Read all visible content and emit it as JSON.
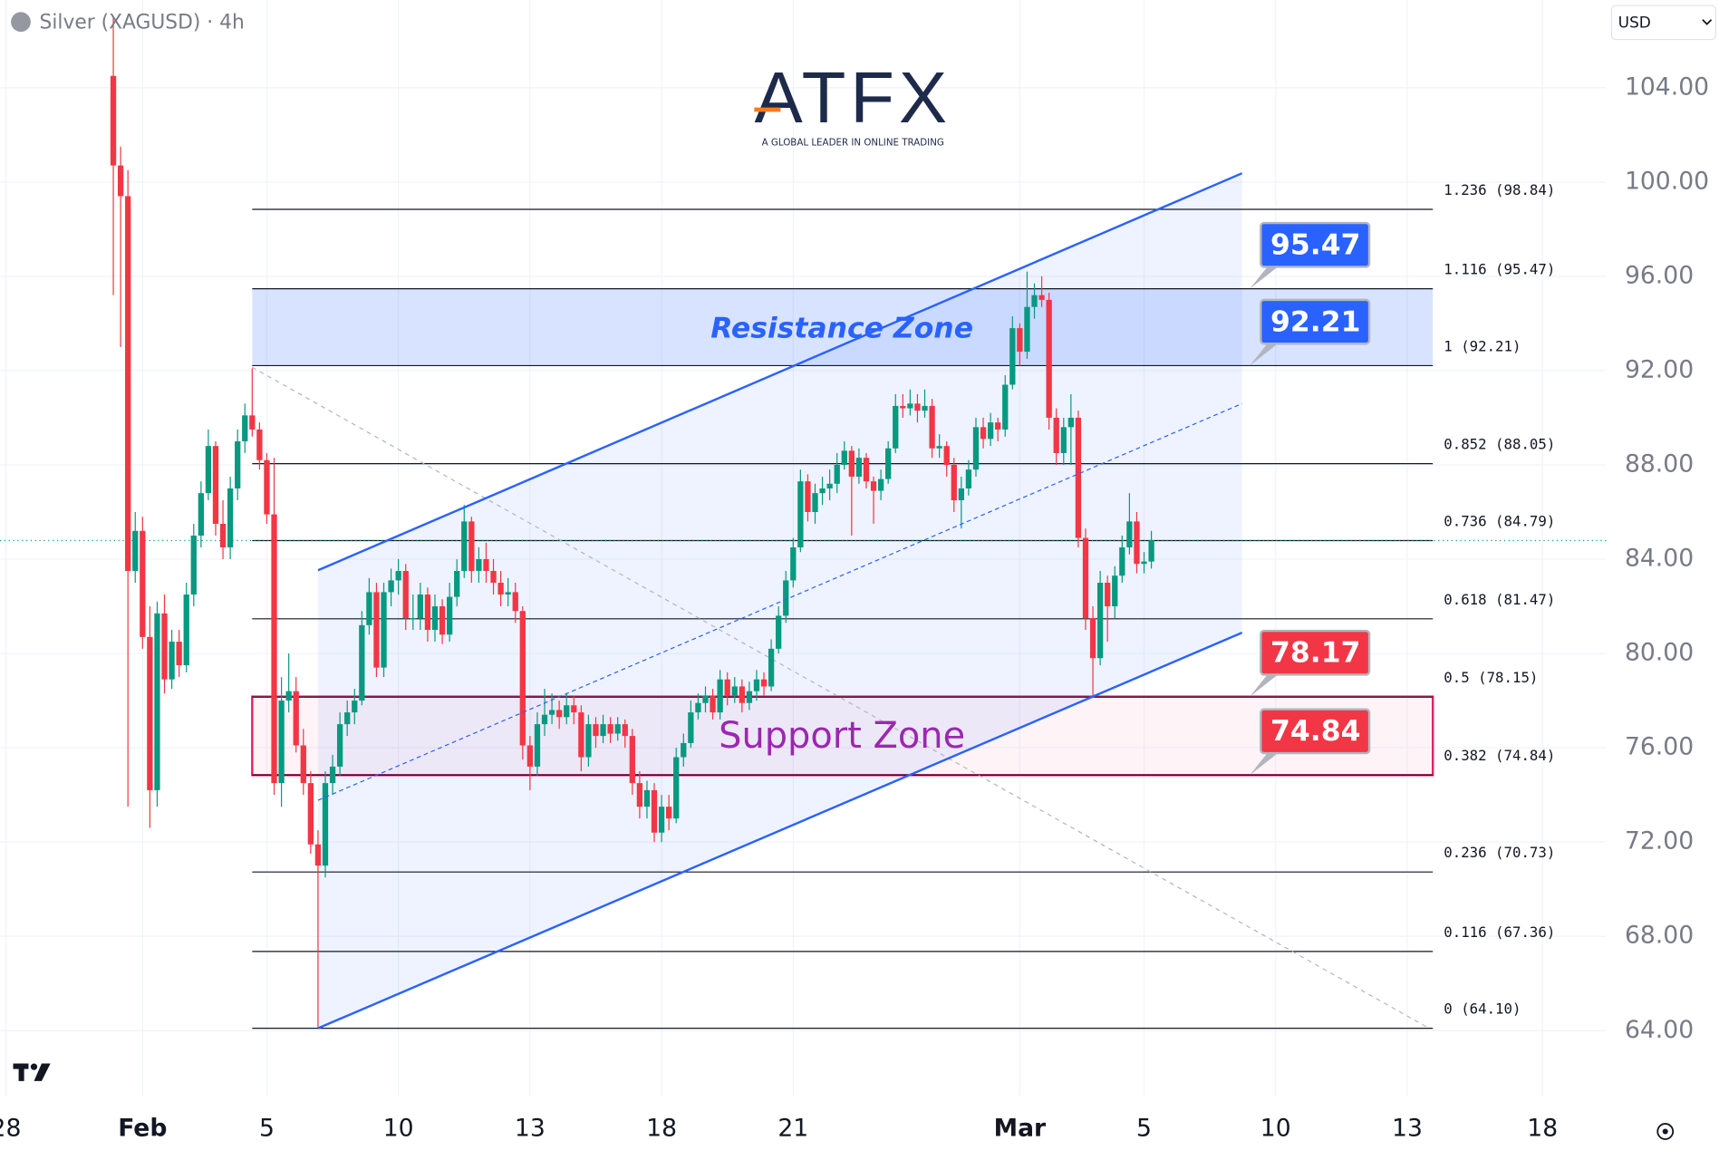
{
  "header": {
    "symbol": "Silver (XAGUSD) · 4h",
    "currency": "USD",
    "logo": "ATFX",
    "tagline": "A GLOBAL LEADER IN ONLINE TRADING"
  },
  "chart_data": {
    "type": "candlestick",
    "up_color": "#089981",
    "down_color": "#f23645",
    "xlim": [
      -19.5,
      200.2
    ],
    "ylim": [
      61.21,
      107.72
    ],
    "xticks": [
      {
        "value": -18.7,
        "label": "28"
      },
      {
        "value": 0,
        "label": "Feb"
      },
      {
        "value": 17,
        "label": "5"
      },
      {
        "value": 35,
        "label": "10"
      },
      {
        "value": 53,
        "label": "13"
      },
      {
        "value": 71,
        "label": "18"
      },
      {
        "value": 89,
        "label": "21"
      },
      {
        "value": 120,
        "label": "Mar"
      },
      {
        "value": 137,
        "label": "5"
      },
      {
        "value": 155,
        "label": "10"
      },
      {
        "value": 173,
        "label": "13"
      },
      {
        "value": 191.5,
        "label": "18"
      }
    ],
    "yticks": [
      {
        "value": 64,
        "label": "64.00"
      },
      {
        "value": 68,
        "label": "68.00"
      },
      {
        "value": 72,
        "label": "72.00"
      },
      {
        "value": 76,
        "label": "76.00"
      },
      {
        "value": 80,
        "label": "80.00"
      },
      {
        "value": 84,
        "label": "84.00"
      },
      {
        "value": 88,
        "label": "88.00"
      },
      {
        "value": 92,
        "label": "92.00"
      },
      {
        "value": 96,
        "label": "96.00"
      },
      {
        "value": 100,
        "label": "100.00"
      },
      {
        "value": 104,
        "label": "104.00"
      }
    ],
    "grid": true,
    "x": [
      -4,
      -3,
      -2,
      -1,
      0,
      1,
      2,
      3,
      4,
      5,
      6,
      7,
      8,
      9,
      10,
      11,
      12,
      13,
      14,
      15,
      16,
      17,
      18,
      19,
      20,
      21,
      22,
      23,
      24,
      25,
      26,
      27,
      28,
      29,
      30,
      31,
      32,
      33,
      34,
      35,
      36,
      37,
      38,
      39,
      40,
      41,
      42,
      43,
      44,
      45,
      46,
      47,
      48,
      49,
      50,
      51,
      52,
      53,
      54,
      55,
      56,
      57,
      58,
      59,
      60,
      61,
      62,
      63,
      64,
      65,
      66,
      67,
      68,
      69,
      70,
      71,
      72,
      73,
      74,
      75,
      76,
      77,
      78,
      79,
      80,
      81,
      82,
      83,
      84,
      85,
      86,
      87,
      88,
      89,
      90,
      91,
      92,
      93,
      94,
      95,
      96,
      97,
      98,
      99,
      100,
      101,
      102,
      103,
      104,
      105,
      106,
      107,
      108,
      109,
      110,
      111,
      112,
      113,
      114,
      115,
      116,
      117,
      118,
      119,
      120,
      121,
      122,
      123,
      124,
      125,
      126,
      127,
      128,
      129,
      130,
      131,
      132,
      133,
      134,
      135,
      136,
      137,
      138
    ],
    "candles": [
      [
        104.5,
        107,
        95.2,
        100.7
      ],
      [
        100.7,
        101.5,
        93,
        99.4
      ],
      [
        99.4,
        100.5,
        73.5,
        83.5
      ],
      [
        83.5,
        86,
        83,
        85.2
      ],
      [
        85.2,
        85.8,
        80.2,
        80.7
      ],
      [
        80.7,
        82,
        72.6,
        74.2
      ],
      [
        74.2,
        82.2,
        73.5,
        81.7
      ],
      [
        81.7,
        82.5,
        78.3,
        78.9
      ],
      [
        78.9,
        81,
        78.5,
        80.5
      ],
      [
        80.5,
        81,
        79,
        79.5
      ],
      [
        79.5,
        83,
        79.2,
        82.5
      ],
      [
        82.5,
        85.5,
        82,
        85
      ],
      [
        85,
        87.3,
        84.5,
        86.8
      ],
      [
        86.8,
        89.5,
        86.5,
        88.8
      ],
      [
        88.8,
        89,
        85,
        85.5
      ],
      [
        85.5,
        86.5,
        84,
        84.5
      ],
      [
        84.5,
        87.5,
        84,
        87
      ],
      [
        87,
        89.5,
        86.5,
        89
      ],
      [
        89,
        90.6,
        88.5,
        90.1
      ],
      [
        90.1,
        92.1,
        89.2,
        89.5
      ],
      [
        89.5,
        89.8,
        87.8,
        88.2
      ],
      [
        88.2,
        88.5,
        85.5,
        85.9
      ],
      [
        85.9,
        88.3,
        74,
        74.5
      ],
      [
        74.5,
        79,
        73.5,
        78
      ],
      [
        78,
        80,
        77.5,
        78.4
      ],
      [
        78.4,
        79,
        75.8,
        76.1
      ],
      [
        76.1,
        76.8,
        74,
        74.5
      ],
      [
        74.5,
        75,
        71.5,
        71.9
      ],
      [
        71.9,
        72.5,
        64.1,
        71
      ],
      [
        71,
        75,
        70.5,
        74.5
      ],
      [
        74.5,
        75.7,
        74,
        75.2
      ],
      [
        75.2,
        77.5,
        74.8,
        77
      ],
      [
        77,
        78,
        76.5,
        77.5
      ],
      [
        77.5,
        78.5,
        77,
        78
      ],
      [
        78,
        81.8,
        77.8,
        81.2
      ],
      [
        81.2,
        83.2,
        80.8,
        82.6
      ],
      [
        82.6,
        83,
        79,
        79.4
      ],
      [
        79.4,
        83,
        79,
        82.6
      ],
      [
        82.6,
        83.6,
        82,
        83.1
      ],
      [
        83.1,
        84,
        82.5,
        83.5
      ],
      [
        83.5,
        83.8,
        81,
        81.5
      ],
      [
        81.5,
        82.5,
        81,
        81.5
      ],
      [
        81.5,
        83,
        81,
        82.5
      ],
      [
        82.5,
        82.8,
        80.5,
        81
      ],
      [
        81,
        82.5,
        80.5,
        82
      ],
      [
        82,
        82.3,
        80.4,
        80.8
      ],
      [
        80.8,
        83,
        80.5,
        82.4
      ],
      [
        82.4,
        84,
        82,
        83.5
      ],
      [
        83.5,
        86.3,
        83.2,
        85.6
      ],
      [
        85.6,
        85.8,
        83,
        83.5
      ],
      [
        83.5,
        84.5,
        83,
        84
      ],
      [
        84,
        84.7,
        83,
        83.5
      ],
      [
        83.5,
        84,
        82.5,
        83
      ],
      [
        83,
        83.5,
        82,
        82.5
      ],
      [
        82.5,
        83.2,
        82,
        82.6
      ],
      [
        82.6,
        83,
        81.3,
        81.8
      ],
      [
        81.8,
        82,
        75.5,
        76.1
      ],
      [
        76.1,
        76.5,
        74.2,
        75.2
      ],
      [
        75.2,
        77.5,
        74.8,
        77
      ],
      [
        77,
        78.5,
        76.5,
        77.4
      ],
      [
        77.4,
        78.3,
        77,
        77.6
      ],
      [
        77.6,
        78,
        76.8,
        77.3
      ],
      [
        77.3,
        78.3,
        77,
        77.8
      ],
      [
        77.8,
        78.2,
        77,
        77.5
      ],
      [
        77.5,
        77.8,
        75,
        75.6
      ],
      [
        75.6,
        77.4,
        75.2,
        77
      ],
      [
        77,
        77.3,
        76,
        76.5
      ],
      [
        76.5,
        77.4,
        76.2,
        77
      ],
      [
        77,
        77.3,
        76.2,
        76.6
      ],
      [
        76.6,
        77.3,
        76.3,
        77
      ],
      [
        77,
        77.2,
        76,
        76.5
      ],
      [
        76.5,
        76.8,
        74,
        74.5
      ],
      [
        74.5,
        75,
        73,
        73.5
      ],
      [
        73.5,
        74.6,
        73,
        74.2
      ],
      [
        74.2,
        74.5,
        72,
        72.4
      ],
      [
        72.4,
        74,
        72,
        73.5
      ],
      [
        73.5,
        74,
        72.5,
        73
      ],
      [
        73,
        76,
        72.8,
        75.6
      ],
      [
        75.6,
        76.6,
        75.2,
        76.2
      ],
      [
        76.2,
        78,
        76,
        77.5
      ],
      [
        77.5,
        78.3,
        77.2,
        77.9
      ],
      [
        77.9,
        78.6,
        77.5,
        78.2
      ],
      [
        78.2,
        78.5,
        77.2,
        77.5
      ],
      [
        77.5,
        79.3,
        77.2,
        78.9
      ],
      [
        78.9,
        79.2,
        77.8,
        78.2
      ],
      [
        78.2,
        79,
        77.9,
        78.6
      ],
      [
        78.6,
        78.9,
        77.5,
        77.9
      ],
      [
        77.9,
        78.8,
        77.6,
        78.4
      ],
      [
        78.4,
        79.3,
        78,
        78.9
      ],
      [
        78.9,
        79.2,
        78.2,
        78.6
      ],
      [
        78.6,
        80.6,
        78.4,
        80.2
      ],
      [
        80.2,
        82,
        80,
        81.6
      ],
      [
        81.6,
        83.5,
        81.3,
        83.1
      ],
      [
        83.1,
        84.9,
        82.8,
        84.5
      ],
      [
        84.5,
        87.8,
        84.3,
        87.3
      ],
      [
        87.3,
        87.6,
        85.6,
        86
      ],
      [
        86,
        87.2,
        85.5,
        86.8
      ],
      [
        86.8,
        87.5,
        86.3,
        87
      ],
      [
        87,
        87.8,
        86.5,
        87.2
      ],
      [
        87.2,
        88.5,
        86.8,
        88
      ],
      [
        88,
        89,
        87.8,
        88.6
      ],
      [
        88.6,
        88.8,
        85,
        87.5
      ],
      [
        87.5,
        88.7,
        87.2,
        88.3
      ],
      [
        88.3,
        88.5,
        87,
        87.3
      ],
      [
        87.3,
        87.5,
        85.5,
        86.9
      ],
      [
        86.9,
        87.8,
        86.5,
        87.4
      ],
      [
        87.4,
        89,
        87.2,
        88.7
      ],
      [
        88.7,
        91,
        88.5,
        90.5
      ],
      [
        90.5,
        91,
        90,
        90.4
      ],
      [
        90.4,
        91.2,
        90.1,
        90.6
      ],
      [
        90.6,
        91,
        89.8,
        90.3
      ],
      [
        90.3,
        91.2,
        90,
        90.5
      ],
      [
        90.5,
        90.8,
        88.3,
        88.7
      ],
      [
        88.7,
        89.3,
        88.3,
        88.8
      ],
      [
        88.8,
        89,
        87.5,
        88
      ],
      [
        88,
        88.3,
        86,
        86.5
      ],
      [
        86.5,
        87.5,
        85.3,
        87
      ],
      [
        87,
        88.2,
        86.7,
        87.8
      ],
      [
        87.8,
        90,
        87.5,
        89.6
      ],
      [
        89.6,
        90,
        88.7,
        89.1
      ],
      [
        89.1,
        90.2,
        88.8,
        89.8
      ],
      [
        89.8,
        90,
        89,
        89.5
      ],
      [
        89.5,
        91.8,
        89.2,
        91.4
      ],
      [
        91.4,
        94.3,
        91.2,
        93.8
      ],
      [
        93.8,
        94,
        92.2,
        92.8
      ],
      [
        92.8,
        96.2,
        92.5,
        94.7
      ],
      [
        94.7,
        95.7,
        94.2,
        95.2
      ],
      [
        95.2,
        96,
        94.7,
        95
      ],
      [
        95,
        95.3,
        89.5,
        90
      ],
      [
        90,
        90.4,
        88,
        88.5
      ],
      [
        88.5,
        90,
        88,
        89.6
      ],
      [
        89.6,
        91,
        88,
        90
      ],
      [
        90,
        90.3,
        84.5,
        84.9
      ],
      [
        84.9,
        85.3,
        81,
        81.5
      ],
      [
        81.5,
        82,
        78.2,
        79.8
      ],
      [
        79.8,
        83.5,
        79.5,
        83
      ],
      [
        83,
        83.3,
        80.5,
        82
      ],
      [
        82,
        83.7,
        81.5,
        83.3
      ],
      [
        83.3,
        85,
        83,
        84.5
      ],
      [
        84.5,
        86.8,
        84.2,
        85.6
      ],
      [
        85.6,
        86,
        83.4,
        83.8
      ],
      [
        83.8,
        84.3,
        83.4,
        83.9
      ],
      [
        83.9,
        85.2,
        83.6,
        84.8
      ]
    ],
    "last_price": 84.79,
    "fib_xrange": [
      15,
      176.5
    ],
    "fib_levels": [
      {
        "value": 98.84,
        "label": "1.236 (98.84)"
      },
      {
        "value": 95.47,
        "label": "1.116 (95.47)"
      },
      {
        "value": 92.21,
        "label": "1 (92.21)"
      },
      {
        "value": 88.05,
        "label": "0.852 (88.05)"
      },
      {
        "value": 84.79,
        "label": "0.736 (84.79)"
      },
      {
        "value": 81.47,
        "label": "0.618 (81.47)"
      },
      {
        "value": 78.15,
        "label": "0.5 (78.15)"
      },
      {
        "value": 74.84,
        "label": "0.382 (74.84)"
      },
      {
        "value": 70.73,
        "label": "0.236 (70.73)"
      },
      {
        "value": 67.36,
        "label": "0.116 (67.36)"
      },
      {
        "value": 64.1,
        "label": "0 (64.10)"
      }
    ],
    "zones": [
      {
        "name": "Resistance Zone",
        "range": [
          92.21,
          95.47
        ],
        "color": "#2962ff"
      },
      {
        "name": "Support Zone",
        "range": [
          74.84,
          78.17
        ],
        "color": "#e91e63"
      }
    ],
    "channel": {
      "x": [
        24,
        150.4
      ],
      "upper": [
        83.53,
        100.37
      ],
      "middle": [
        73.77,
        90.6
      ],
      "lower": [
        64.1,
        80.88
      ],
      "color": "#2962ff"
    },
    "trend_line": {
      "x": [
        15,
        176
      ],
      "y": [
        92.14,
        64.1
      ]
    },
    "price_tags": [
      {
        "value": 95.47,
        "color": "#2962ff"
      },
      {
        "value": 92.21,
        "color": "#2962ff"
      },
      {
        "value": 78.17,
        "color": "#f23645"
      },
      {
        "value": 74.84,
        "color": "#f23645"
      }
    ]
  }
}
